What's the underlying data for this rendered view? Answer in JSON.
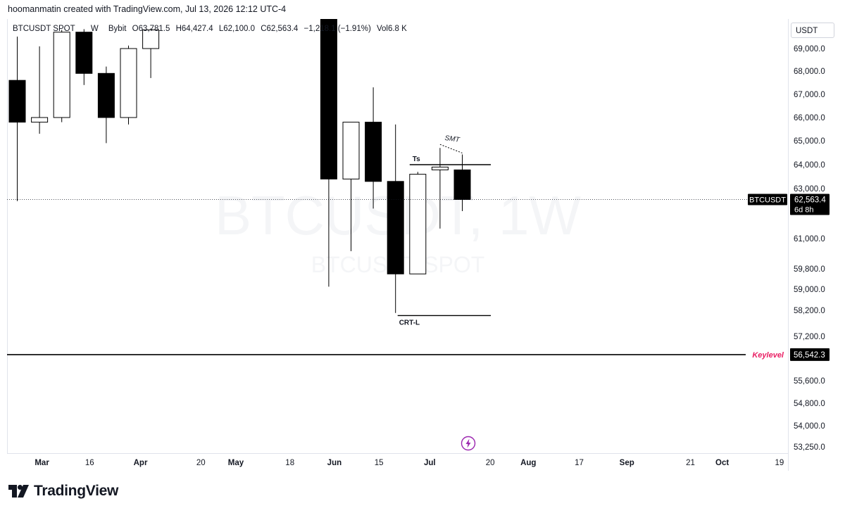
{
  "header": {
    "credit": "hoomanmatin created with TradingView.com, Jul 13, 2026 12:12 UTC-4"
  },
  "legend": {
    "symbol": "BTCUSDT SPOT",
    "interval": "W",
    "exchange": "Bybit",
    "open": "O63,781.5",
    "high": "H64,427.4",
    "low": "L62,100.0",
    "close": "C62,563.4",
    "change": "−1,218.1 (−1.91%)",
    "volume": "Vol6.8 K"
  },
  "currency": "USDT",
  "watermark": {
    "main": "BTCUSDT, 1W",
    "sub": "BTCUSDT SPOT"
  },
  "brand": {
    "name": "TradingView",
    "logo_icon": "tradingview-logo-icon"
  },
  "colors": {
    "bull_fill": "#ffffff",
    "bear_fill": "#000000",
    "candle_border": "#000000",
    "keylevel_text": "#e91e63",
    "axis_text": "#131722",
    "grid": "#f0f3fa"
  },
  "chart_data": {
    "type": "candlestick",
    "interval": "1W",
    "y_axis_ticks": [
      "69,000.0",
      "68,000.0",
      "67,000.0",
      "66,000.0",
      "65,000.0",
      "64,000.0",
      "63,000.0",
      "61,000.0",
      "59,800.0",
      "59,000.0",
      "58,200.0",
      "57,200.0",
      "55,600.0",
      "54,800.0",
      "54,000.0",
      "53,250.0"
    ],
    "x_axis_ticks": [
      "Mar",
      "16",
      "Apr",
      "20",
      "May",
      "18",
      "Jun",
      "15",
      "Jul",
      "20",
      "Aug",
      "17",
      "Sep",
      "21",
      "Oct",
      "19"
    ],
    "candles": [
      {
        "date": "2026-02-23",
        "open": 67600,
        "high": 70600,
        "low": 62500,
        "close": 65800
      },
      {
        "date": "2026-03-02",
        "open": 65800,
        "high": 69300,
        "low": 65300,
        "close": 66000
      },
      {
        "date": "2026-03-09",
        "open": 66000,
        "high": 71500,
        "low": 65800,
        "close": 71200
      },
      {
        "date": "2026-03-16",
        "open": 71200,
        "high": 71600,
        "low": 67400,
        "close": 67900
      },
      {
        "date": "2026-03-23",
        "open": 67900,
        "high": 68200,
        "low": 64900,
        "close": 66000
      },
      {
        "date": "2026-03-30",
        "open": 66000,
        "high": 69400,
        "low": 65700,
        "close": 69000
      },
      {
        "date": "2026-04-06",
        "open": 69000,
        "high": 71700,
        "low": 67700,
        "close": 71500
      },
      {
        "date": "2026-06-01",
        "open": 73500,
        "high": 74000,
        "low": 59100,
        "close": 63400
      },
      {
        "date": "2026-06-08",
        "open": 63400,
        "high": 65800,
        "low": 60500,
        "close": 65800
      },
      {
        "date": "2026-06-15",
        "open": 65800,
        "high": 67300,
        "low": 62200,
        "close": 63300
      },
      {
        "date": "2026-06-22",
        "open": 63300,
        "high": 65700,
        "low": 58100,
        "close": 59600
      },
      {
        "date": "2026-06-29",
        "open": 59600,
        "high": 63700,
        "low": 59600,
        "close": 63600
      },
      {
        "date": "2026-07-06",
        "open": 63800,
        "high": 64700,
        "low": 61400,
        "close": 63900
      },
      {
        "date": "2026-07-13",
        "open": 63781.5,
        "high": 64427.4,
        "low": 62100.0,
        "close": 62563.4
      }
    ],
    "current_price": {
      "label": "BTCUSDT",
      "value": "62,563.4",
      "countdown": "6d 8h"
    },
    "key_level": {
      "label": "Keylevel",
      "value": "56,542.3"
    },
    "annotations": [
      {
        "type": "hline",
        "label": "Ts",
        "price": 64000
      },
      {
        "type": "hline",
        "label": "CRT-L",
        "price": 58000
      },
      {
        "type": "dotted-line",
        "label": "SMT"
      }
    ]
  }
}
